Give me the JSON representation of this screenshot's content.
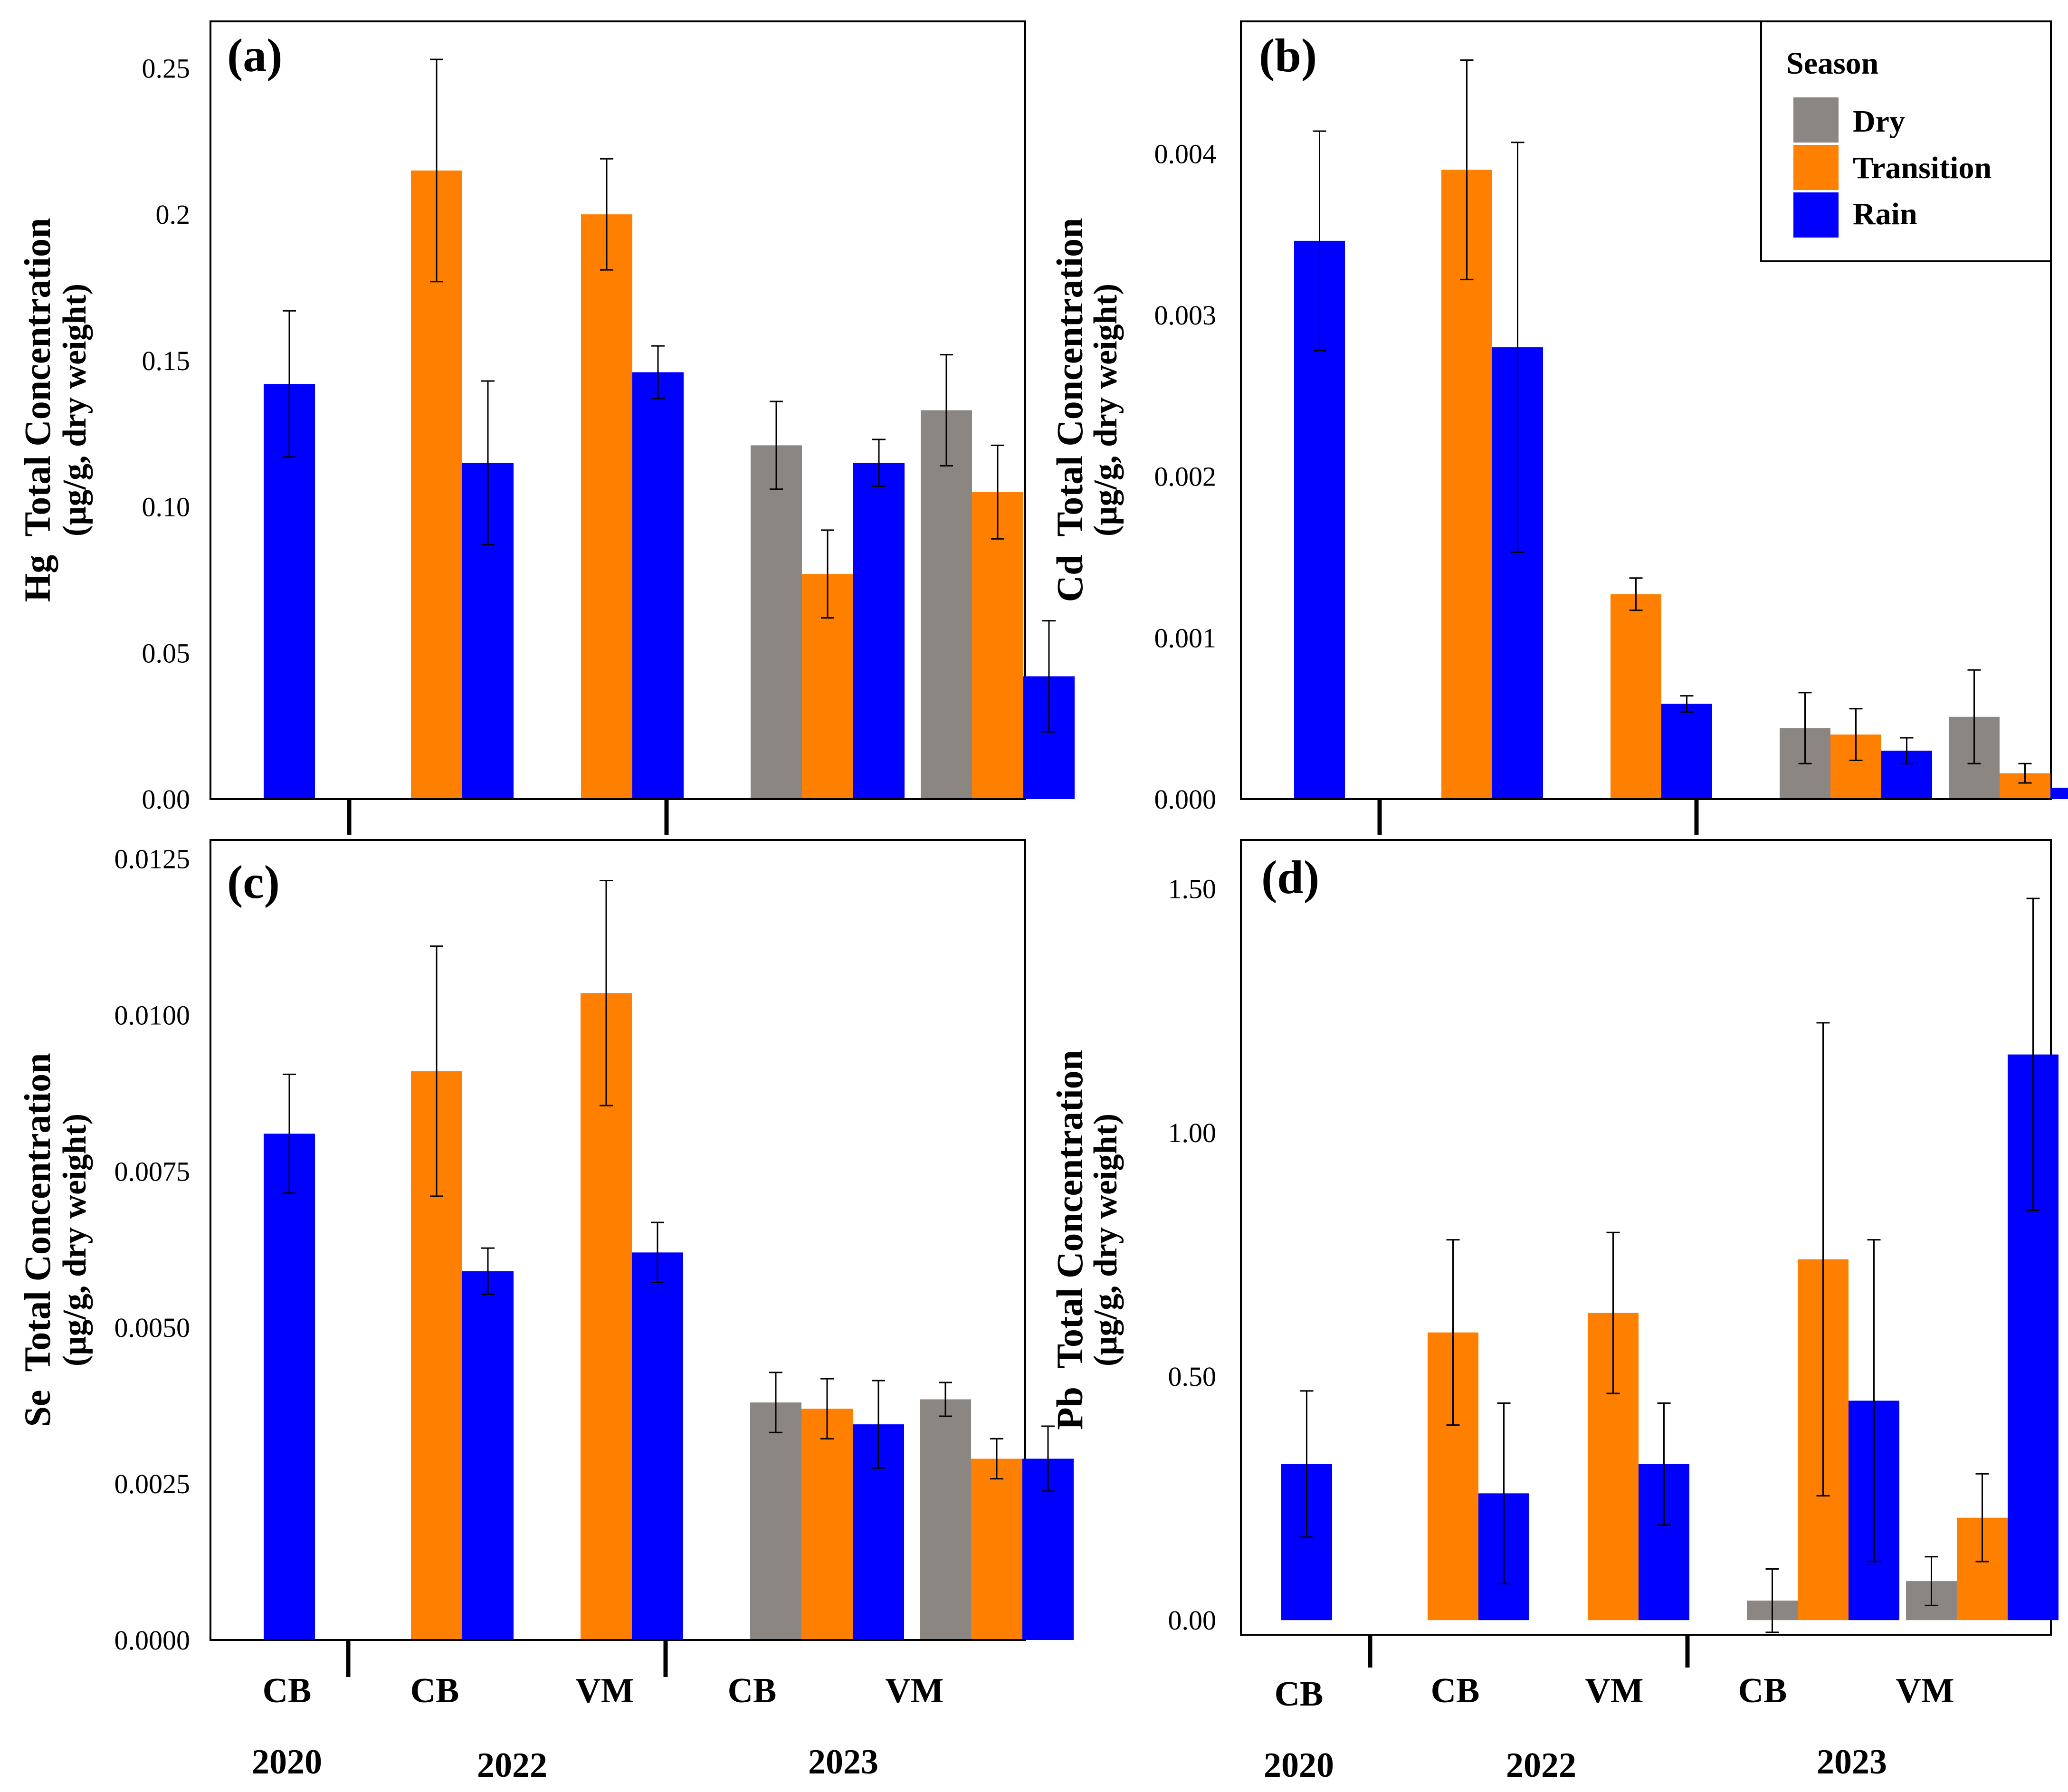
{
  "colors": {
    "Dry": "#8c8683",
    "Transition": "#ff7f00",
    "Rain": "#0000ff",
    "error_bar": "#000000"
  },
  "legend": {
    "title": "Season",
    "items": [
      {
        "label": "Dry",
        "color": "#8c8683"
      },
      {
        "label": "Transition",
        "color": "#ff7f00"
      },
      {
        "label": "Rain",
        "color": "#0000ff"
      }
    ]
  },
  "x_axis": {
    "groups": [
      "CB",
      "CB",
      "VM",
      "CB",
      "VM"
    ],
    "years": [
      {
        "label": "2020",
        "groups": [
          0
        ]
      },
      {
        "label": "2022",
        "groups": [
          1,
          2
        ]
      },
      {
        "label": "2023",
        "groups": [
          3,
          4
        ]
      }
    ]
  },
  "chart_data": [
    {
      "type": "bar",
      "panel": "(a)",
      "element": "Hg",
      "ylabel_element": "Hg",
      "ylabel_line1": "Total Concentration",
      "ylabel_line2": "(µg/g, dry weight)",
      "ylim": [
        0,
        0.266
      ],
      "yticks": [
        0,
        0.05,
        0.1,
        0.15,
        0.2,
        0.25
      ],
      "ytick_labels": [
        "0.00",
        "0.05",
        "0.10",
        "0.15",
        "0.2",
        "0.25"
      ],
      "categories": [
        "CB 2020",
        "CB 2022",
        "VM 2022",
        "CB 2023",
        "VM 2023"
      ],
      "series": [
        {
          "name": "Dry",
          "values": [
            null,
            null,
            null,
            0.121,
            0.133
          ],
          "errors": [
            null,
            null,
            null,
            0.015,
            0.019
          ]
        },
        {
          "name": "Transition",
          "values": [
            null,
            0.215,
            0.2,
            0.077,
            0.105
          ],
          "errors": [
            null,
            0.038,
            0.019,
            0.015,
            0.016
          ]
        },
        {
          "name": "Rain",
          "values": [
            0.142,
            0.115,
            0.146,
            0.115,
            0.042
          ],
          "errors": [
            0.025,
            0.028,
            0.009,
            0.008,
            0.019
          ]
        }
      ]
    },
    {
      "type": "bar",
      "panel": "(b)",
      "element": "Cd",
      "ylabel_element": "Cd",
      "ylabel_line1": "Total Concentration",
      "ylabel_line2": "(µg/g, dry weight)",
      "ylim": [
        0,
        0.00482
      ],
      "yticks": [
        0,
        0.001,
        0.002,
        0.003,
        0.004
      ],
      "ytick_labels": [
        "0.000",
        "0.001",
        "0.002",
        "0.003",
        "0.004"
      ],
      "categories": [
        "CB 2020",
        "CB 2022",
        "VM 2022",
        "CB 2023",
        "VM 2023"
      ],
      "series": [
        {
          "name": "Dry",
          "values": [
            null,
            null,
            null,
            0.00044,
            0.00051
          ],
          "errors": [
            null,
            null,
            null,
            0.00022,
            0.00029
          ]
        },
        {
          "name": "Transition",
          "values": [
            null,
            0.0039,
            0.00127,
            0.0004,
            0.00016
          ],
          "errors": [
            null,
            0.00068,
            0.0001,
            0.00016,
            6e-05
          ]
        },
        {
          "name": "Rain",
          "values": [
            0.00346,
            0.0028,
            0.00059,
            0.0003,
            7e-05
          ],
          "errors": [
            0.00068,
            0.00127,
            5e-05,
            8e-05,
            2e-05
          ]
        }
      ]
    },
    {
      "type": "bar",
      "panel": "(c)",
      "element": "Se",
      "ylabel_element": "Se",
      "ylabel_line1": "Total Concentration",
      "ylabel_line2": "(µg/g, dry weight)",
      "ylim": [
        0,
        0.0128
      ],
      "yticks": [
        0,
        0.0025,
        0.005,
        0.0075,
        0.01,
        0.0125
      ],
      "ytick_labels": [
        "0.0000",
        "0.0025",
        "0.0050",
        "0.0075",
        "0.0100",
        "0.0125"
      ],
      "categories": [
        "CB 2020",
        "CB 2022",
        "VM 2022",
        "CB 2023",
        "VM 2023"
      ],
      "series": [
        {
          "name": "Dry",
          "values": [
            null,
            null,
            null,
            0.0038,
            0.00385
          ],
          "errors": [
            null,
            null,
            null,
            0.00048,
            0.00027
          ]
        },
        {
          "name": "Transition",
          "values": [
            null,
            0.0091,
            0.01035,
            0.0037,
            0.0029
          ],
          "errors": [
            null,
            0.002,
            0.0018,
            0.00048,
            0.00032
          ]
        },
        {
          "name": "Rain",
          "values": [
            0.0081,
            0.0059,
            0.0062,
            0.00345,
            0.0029
          ],
          "errors": [
            0.00095,
            0.00037,
            0.00048,
            0.0007,
            0.00052
          ]
        }
      ]
    },
    {
      "type": "bar",
      "panel": "(d)",
      "element": "Pb",
      "ylabel_element": "Pb",
      "ylabel_line1": "Total Concentration",
      "ylabel_line2": "(µg/g, dry weight)",
      "ylim": [
        -0.03,
        1.6
      ],
      "yticks": [
        0,
        0.5,
        1.0,
        1.5
      ],
      "ytick_labels": [
        "0.00",
        "0.50",
        "1.00",
        "1.50"
      ],
      "categories": [
        "CB 2020",
        "CB 2022",
        "VM 2022",
        "CB 2023",
        "VM 2023"
      ],
      "series": [
        {
          "name": "Dry",
          "values": [
            null,
            null,
            null,
            0.04,
            0.08
          ],
          "errors": [
            null,
            null,
            null,
            0.065,
            0.05
          ]
        },
        {
          "name": "Transition",
          "values": [
            null,
            0.59,
            0.63,
            0.74,
            0.21
          ],
          "errors": [
            null,
            0.19,
            0.165,
            0.485,
            0.09
          ]
        },
        {
          "name": "Rain",
          "values": [
            0.32,
            0.26,
            0.32,
            0.45,
            1.16
          ],
          "errors": [
            0.15,
            0.185,
            0.125,
            0.33,
            0.32
          ]
        }
      ]
    }
  ]
}
